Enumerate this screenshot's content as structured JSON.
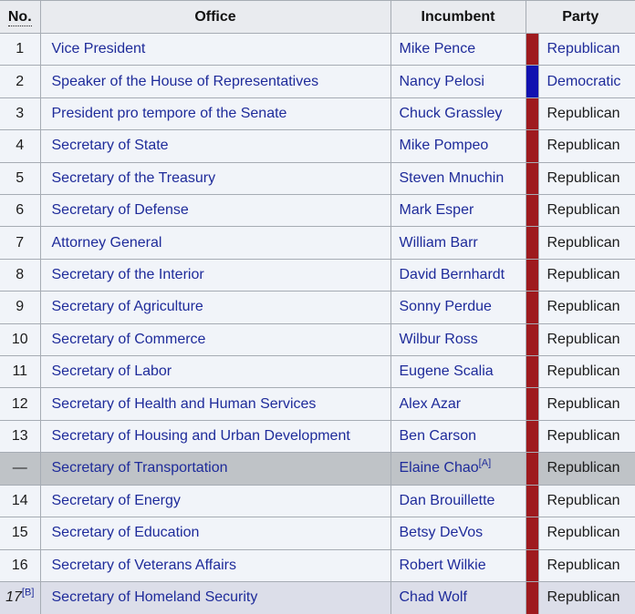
{
  "theme": {
    "link_color": "#1e2b9a",
    "border_color": "#a6acb4",
    "header_background": "#e9ebef",
    "row_background": "#f1f4f9",
    "ineligible_row_background": "#bfc3c7",
    "acting_row_background": "#dcdee9"
  },
  "table": {
    "headers": {
      "no": "No.",
      "office": "Office",
      "incumbent": "Incumbent",
      "party": "Party"
    },
    "party_colors": {
      "Republican": "#9e1a1e",
      "Democratic": "#1111b0"
    },
    "rows": [
      {
        "no": "1",
        "office": "Vice President",
        "incumbent": "Mike Pence",
        "party": "Republican",
        "party_is_link": true,
        "style": "normal"
      },
      {
        "no": "2",
        "office": "Speaker of the House of Representatives",
        "incumbent": "Nancy Pelosi",
        "party": "Democratic",
        "party_is_link": true,
        "style": "normal"
      },
      {
        "no": "3",
        "office": "President pro tempore of the Senate",
        "incumbent": "Chuck Grassley",
        "party": "Republican",
        "party_is_link": false,
        "style": "normal"
      },
      {
        "no": "4",
        "office": "Secretary of State",
        "incumbent": "Mike Pompeo",
        "party": "Republican",
        "party_is_link": false,
        "style": "normal"
      },
      {
        "no": "5",
        "office": "Secretary of the Treasury",
        "incumbent": "Steven Mnuchin",
        "party": "Republican",
        "party_is_link": false,
        "style": "normal"
      },
      {
        "no": "6",
        "office": "Secretary of Defense",
        "incumbent": "Mark Esper",
        "party": "Republican",
        "party_is_link": false,
        "style": "normal"
      },
      {
        "no": "7",
        "office": "Attorney General",
        "incumbent": "William Barr",
        "party": "Republican",
        "party_is_link": false,
        "style": "normal"
      },
      {
        "no": "8",
        "office": "Secretary of the Interior",
        "incumbent": "David Bernhardt",
        "party": "Republican",
        "party_is_link": false,
        "style": "normal"
      },
      {
        "no": "9",
        "office": "Secretary of Agriculture",
        "incumbent": "Sonny Perdue",
        "party": "Republican",
        "party_is_link": false,
        "style": "normal"
      },
      {
        "no": "10",
        "office": "Secretary of Commerce",
        "incumbent": "Wilbur Ross",
        "party": "Republican",
        "party_is_link": false,
        "style": "normal"
      },
      {
        "no": "11",
        "office": "Secretary of Labor",
        "incumbent": "Eugene Scalia",
        "party": "Republican",
        "party_is_link": false,
        "style": "normal"
      },
      {
        "no": "12",
        "office": "Secretary of Health and Human Services",
        "incumbent": "Alex Azar",
        "party": "Republican",
        "party_is_link": false,
        "style": "normal"
      },
      {
        "no": "13",
        "office": "Secretary of Housing and Urban Development",
        "incumbent": "Ben Carson",
        "party": "Republican",
        "party_is_link": false,
        "style": "normal"
      },
      {
        "no": "—",
        "office": "Secretary of Transportation",
        "incumbent": "Elaine Chao",
        "incumbent_note": "[A]",
        "party": "Republican",
        "party_is_link": false,
        "style": "ineligible"
      },
      {
        "no": "14",
        "office": "Secretary of Energy",
        "incumbent": "Dan Brouillette",
        "party": "Republican",
        "party_is_link": false,
        "style": "normal"
      },
      {
        "no": "15",
        "office": "Secretary of Education",
        "incumbent": "Betsy DeVos",
        "party": "Republican",
        "party_is_link": false,
        "style": "normal"
      },
      {
        "no": "16",
        "office": "Secretary of Veterans Affairs",
        "incumbent": "Robert Wilkie",
        "party": "Republican",
        "party_is_link": false,
        "style": "normal"
      },
      {
        "no": "17",
        "no_note": "[B]",
        "no_italic": true,
        "office": "Secretary of Homeland Security",
        "incumbent": "Chad Wolf",
        "party": "Republican",
        "party_is_link": false,
        "style": "acting"
      }
    ]
  }
}
